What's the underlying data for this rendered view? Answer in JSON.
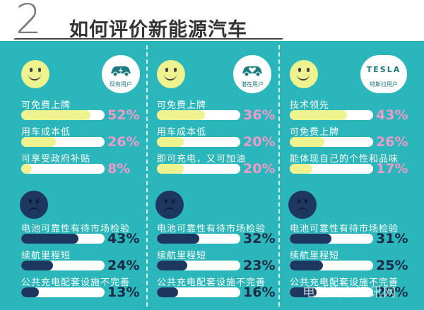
{
  "header": {
    "number": "2",
    "title": "如何评价新能源汽车"
  },
  "columns": [
    {
      "badge": {
        "icon": "car-lightning-icon",
        "label": "现有用户"
      },
      "positives": [
        {
          "label": "可免费上牌",
          "value": 52,
          "display": "52%"
        },
        {
          "label": "用车成本低",
          "value": 26,
          "display": "26%"
        },
        {
          "label": "可享受政府补贴",
          "value": 8,
          "display": "8%"
        }
      ],
      "negatives": [
        {
          "label": "电池可靠性有待市场检验",
          "value": 43,
          "display": "43%"
        },
        {
          "label": "续航里程短",
          "value": 24,
          "display": "24%"
        },
        {
          "label": "公共充电配套设施不完善",
          "value": 13,
          "display": "13%"
        }
      ]
    },
    {
      "badge": {
        "icon": "car-heart-icon",
        "label": "潜在用户"
      },
      "positives": [
        {
          "label": "可免费上牌",
          "value": 36,
          "display": "36%"
        },
        {
          "label": "用车成本低",
          "value": 20,
          "display": "20%"
        },
        {
          "label": "即可充电，又可加油",
          "value": 20,
          "display": "20%"
        }
      ],
      "negatives": [
        {
          "label": "电池可靠性有待市场检验",
          "value": 32,
          "display": "32%"
        },
        {
          "label": "续航里程短",
          "value": 23,
          "display": "23%"
        },
        {
          "label": "公共充电配套设施不完善",
          "value": 16,
          "display": "16%"
        }
      ]
    },
    {
      "badge": {
        "icon": "tesla-logo-icon",
        "brand": "TESLA",
        "label": "特斯拉用户"
      },
      "positives": [
        {
          "label": "技术领先",
          "value": 43,
          "display": "43%"
        },
        {
          "label": "可免费上牌",
          "value": 26,
          "display": "26%"
        },
        {
          "label": "能体现自己的个性和品味",
          "value": 17,
          "display": "17%"
        }
      ],
      "negatives": [
        {
          "label": "电池可靠性有待市场检验",
          "value": 31,
          "display": "31%"
        },
        {
          "label": "续航里程短",
          "value": 25,
          "display": "25%"
        },
        {
          "label": "公共充电配套设施不完善",
          "value": 20,
          "display": "20%"
        }
      ]
    }
  ],
  "watermark": "电动汽车资讯网",
  "colors": {
    "teal": "#2ab6ba",
    "yellow": "#eef28f",
    "pink": "#ef9ac8",
    "navy": "#1e3760"
  }
}
